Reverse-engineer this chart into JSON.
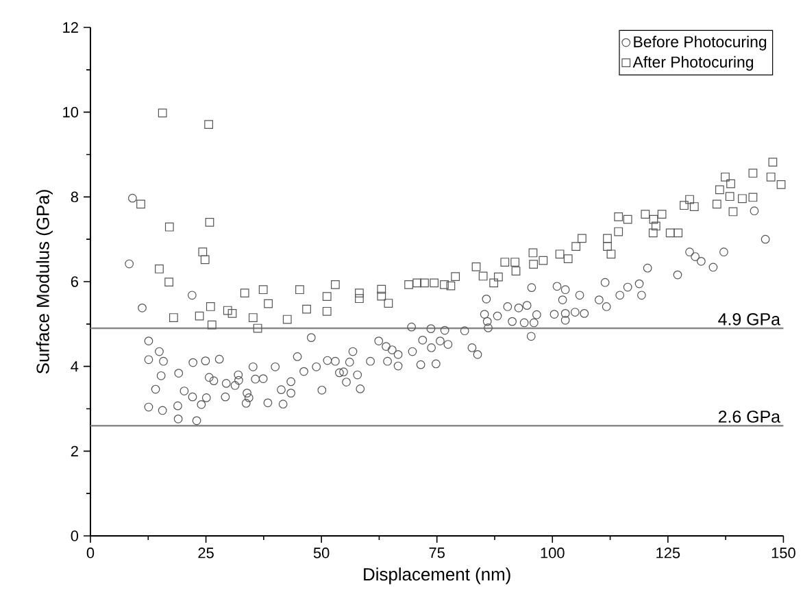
{
  "chart_data": {
    "type": "scatter",
    "xlabel": "Displacement (nm)",
    "ylabel": "Surface Modulus (GPa)",
    "xlim": [
      0,
      150
    ],
    "ylim": [
      0,
      12
    ],
    "xticks": [
      0,
      {
        "value": 12.5,
        "label": null
      },
      25,
      {
        "value": 37.5,
        "label": null
      },
      50,
      {
        "value": 62.5,
        "label": null
      },
      75,
      {
        "value": 87.5,
        "label": null
      },
      100,
      {
        "value": 112.5,
        "label": null
      },
      125,
      {
        "value": 137.5,
        "label": null
      },
      150
    ],
    "yticks": [
      0,
      {
        "value": 1,
        "label": null
      },
      2,
      {
        "value": 3,
        "label": null
      },
      4,
      {
        "value": 5,
        "label": null
      },
      6,
      {
        "value": 7,
        "label": null
      },
      8,
      {
        "value": 9,
        "label": null
      },
      10,
      {
        "value": 11,
        "label": null
      },
      12
    ],
    "grid": false,
    "legend": "top right",
    "ref_lines": [
      {
        "axis": "y",
        "value": 4.9,
        "label": "4.9 GPa",
        "color": "#888888"
      },
      {
        "axis": "y",
        "value": 2.6,
        "label": "2.6 GPa",
        "color": "#888888"
      }
    ],
    "series": [
      {
        "name": "Before Photocuring",
        "color": "#555555",
        "marker": "circle",
        "x": [
          9.1,
          8.4,
          22.0,
          11.2,
          12.6,
          14.9,
          12.6,
          15.8,
          19.1,
          15.3,
          22.2,
          24.9,
          27.9,
          25.7,
          26.7,
          29.4,
          32.0,
          32.1,
          31.3,
          35.2,
          35.7,
          37.4,
          40.0,
          14.1,
          20.3,
          22.1,
          25.1,
          24.0,
          29.2,
          33.9,
          34.3,
          33.7,
          38.4,
          41.3,
          43.4,
          43.4,
          41.7,
          12.6,
          15.6,
          18.9,
          19.0,
          23.0,
          44.8,
          46.2,
          47.8,
          48.9,
          50.1,
          51.3,
          53.0,
          53.9,
          54.8,
          55.4,
          56.1,
          56.8,
          57.8,
          58.4,
          60.6,
          62.4,
          64.0,
          64.3,
          65.3,
          66.6,
          66.6,
          69.5,
          69.7,
          71.5,
          71.9,
          73.7,
          73.8,
          74.8,
          75.7,
          76.7,
          77.4,
          81.0,
          82.6,
          83.8,
          85.7,
          85.3,
          85.9,
          86.1,
          88.1,
          90.3,
          91.3,
          92.7,
          93.9,
          94.5,
          95.5,
          96.0,
          96.6,
          95.4,
          100.4,
          101.0,
          102.8,
          102.2,
          105.9,
          102.8,
          104.9,
          106.9,
          102.8,
          110.1,
          111.4,
          111.7,
          114.6,
          116.3,
          118.8,
          119.3,
          120.6,
          127.1,
          129.7,
          130.9,
          132.2,
          134.8,
          137.1,
          143.7,
          146.1
        ],
        "values": [
          7.97,
          6.42,
          5.68,
          5.38,
          4.6,
          4.35,
          4.16,
          4.12,
          3.84,
          3.78,
          4.09,
          4.13,
          4.17,
          3.74,
          3.66,
          3.6,
          3.8,
          3.67,
          3.55,
          3.99,
          3.7,
          3.71,
          3.99,
          3.46,
          3.42,
          3.28,
          3.26,
          3.1,
          3.28,
          3.37,
          3.26,
          3.13,
          3.14,
          3.45,
          3.64,
          3.37,
          3.11,
          3.04,
          2.96,
          3.07,
          2.76,
          2.72,
          4.23,
          3.88,
          4.68,
          3.99,
          3.44,
          4.14,
          4.12,
          3.85,
          3.87,
          3.63,
          4.1,
          4.35,
          3.8,
          3.47,
          4.12,
          4.6,
          4.47,
          4.12,
          4.39,
          4.28,
          4.01,
          4.93,
          4.35,
          4.04,
          4.62,
          4.89,
          4.44,
          4.06,
          4.6,
          4.85,
          4.52,
          4.84,
          4.44,
          4.28,
          5.59,
          5.23,
          5.06,
          4.91,
          5.19,
          5.41,
          5.06,
          5.38,
          5.03,
          5.44,
          5.86,
          5.03,
          5.22,
          4.71,
          5.23,
          5.89,
          5.81,
          5.57,
          5.68,
          5.25,
          5.28,
          5.25,
          5.09,
          5.57,
          5.98,
          5.41,
          5.68,
          5.87,
          5.95,
          5.68,
          6.32,
          6.16,
          6.7,
          6.59,
          6.48,
          6.34,
          6.7,
          7.67,
          7.0
        ]
      },
      {
        "name": "After Photocuring",
        "color": "#555555",
        "marker": "square",
        "x": [
          15.6,
          25.6,
          10.9,
          17.1,
          25.8,
          24.3,
          24.8,
          14.9,
          17.0,
          33.4,
          37.4,
          38.5,
          45.3,
          51.2,
          18.0,
          23.6,
          26.0,
          26.3,
          29.7,
          30.7,
          35.2,
          36.2,
          42.6,
          46.8,
          51.2,
          53.0,
          58.2,
          58.2,
          63.0,
          63.0,
          64.5,
          68.9,
          70.7,
          72.3,
          74.4,
          76.6,
          78.0,
          79.0,
          83.5,
          85.0,
          87.3,
          88.3,
          89.7,
          91.9,
          92.1,
          95.8,
          95.9,
          98.0,
          101.6,
          103.4,
          105.1,
          106.4,
          111.9,
          112.7,
          111.9,
          114.3,
          114.3,
          116.3,
          120.1,
          121.9,
          123.7,
          122.4,
          121.8,
          125.5,
          127.2,
          128.5,
          130.7,
          129.7,
          135.6,
          136.2,
          137.4,
          138.6,
          138.4,
          139.1,
          141.1,
          143.4,
          143.4,
          147.7,
          147.3,
          149.5
        ],
        "values": [
          9.98,
          9.71,
          7.83,
          7.29,
          7.4,
          6.7,
          6.52,
          6.3,
          5.99,
          5.73,
          5.81,
          5.48,
          5.81,
          5.65,
          5.15,
          5.19,
          5.41,
          4.98,
          5.32,
          5.25,
          5.15,
          4.9,
          5.11,
          5.35,
          5.3,
          5.93,
          5.73,
          5.6,
          5.82,
          5.66,
          5.49,
          5.93,
          5.97,
          5.97,
          5.97,
          5.93,
          5.9,
          6.12,
          6.35,
          6.13,
          5.97,
          6.11,
          6.46,
          6.46,
          6.25,
          6.68,
          6.41,
          6.5,
          6.65,
          6.54,
          6.83,
          7.02,
          7.02,
          6.65,
          6.83,
          7.18,
          7.53,
          7.47,
          7.59,
          7.47,
          7.59,
          7.31,
          7.15,
          7.15,
          7.15,
          7.8,
          7.77,
          7.94,
          7.83,
          8.17,
          8.47,
          8.31,
          8.01,
          7.65,
          7.96,
          7.99,
          8.56,
          8.82,
          8.47,
          8.29
        ]
      }
    ]
  }
}
